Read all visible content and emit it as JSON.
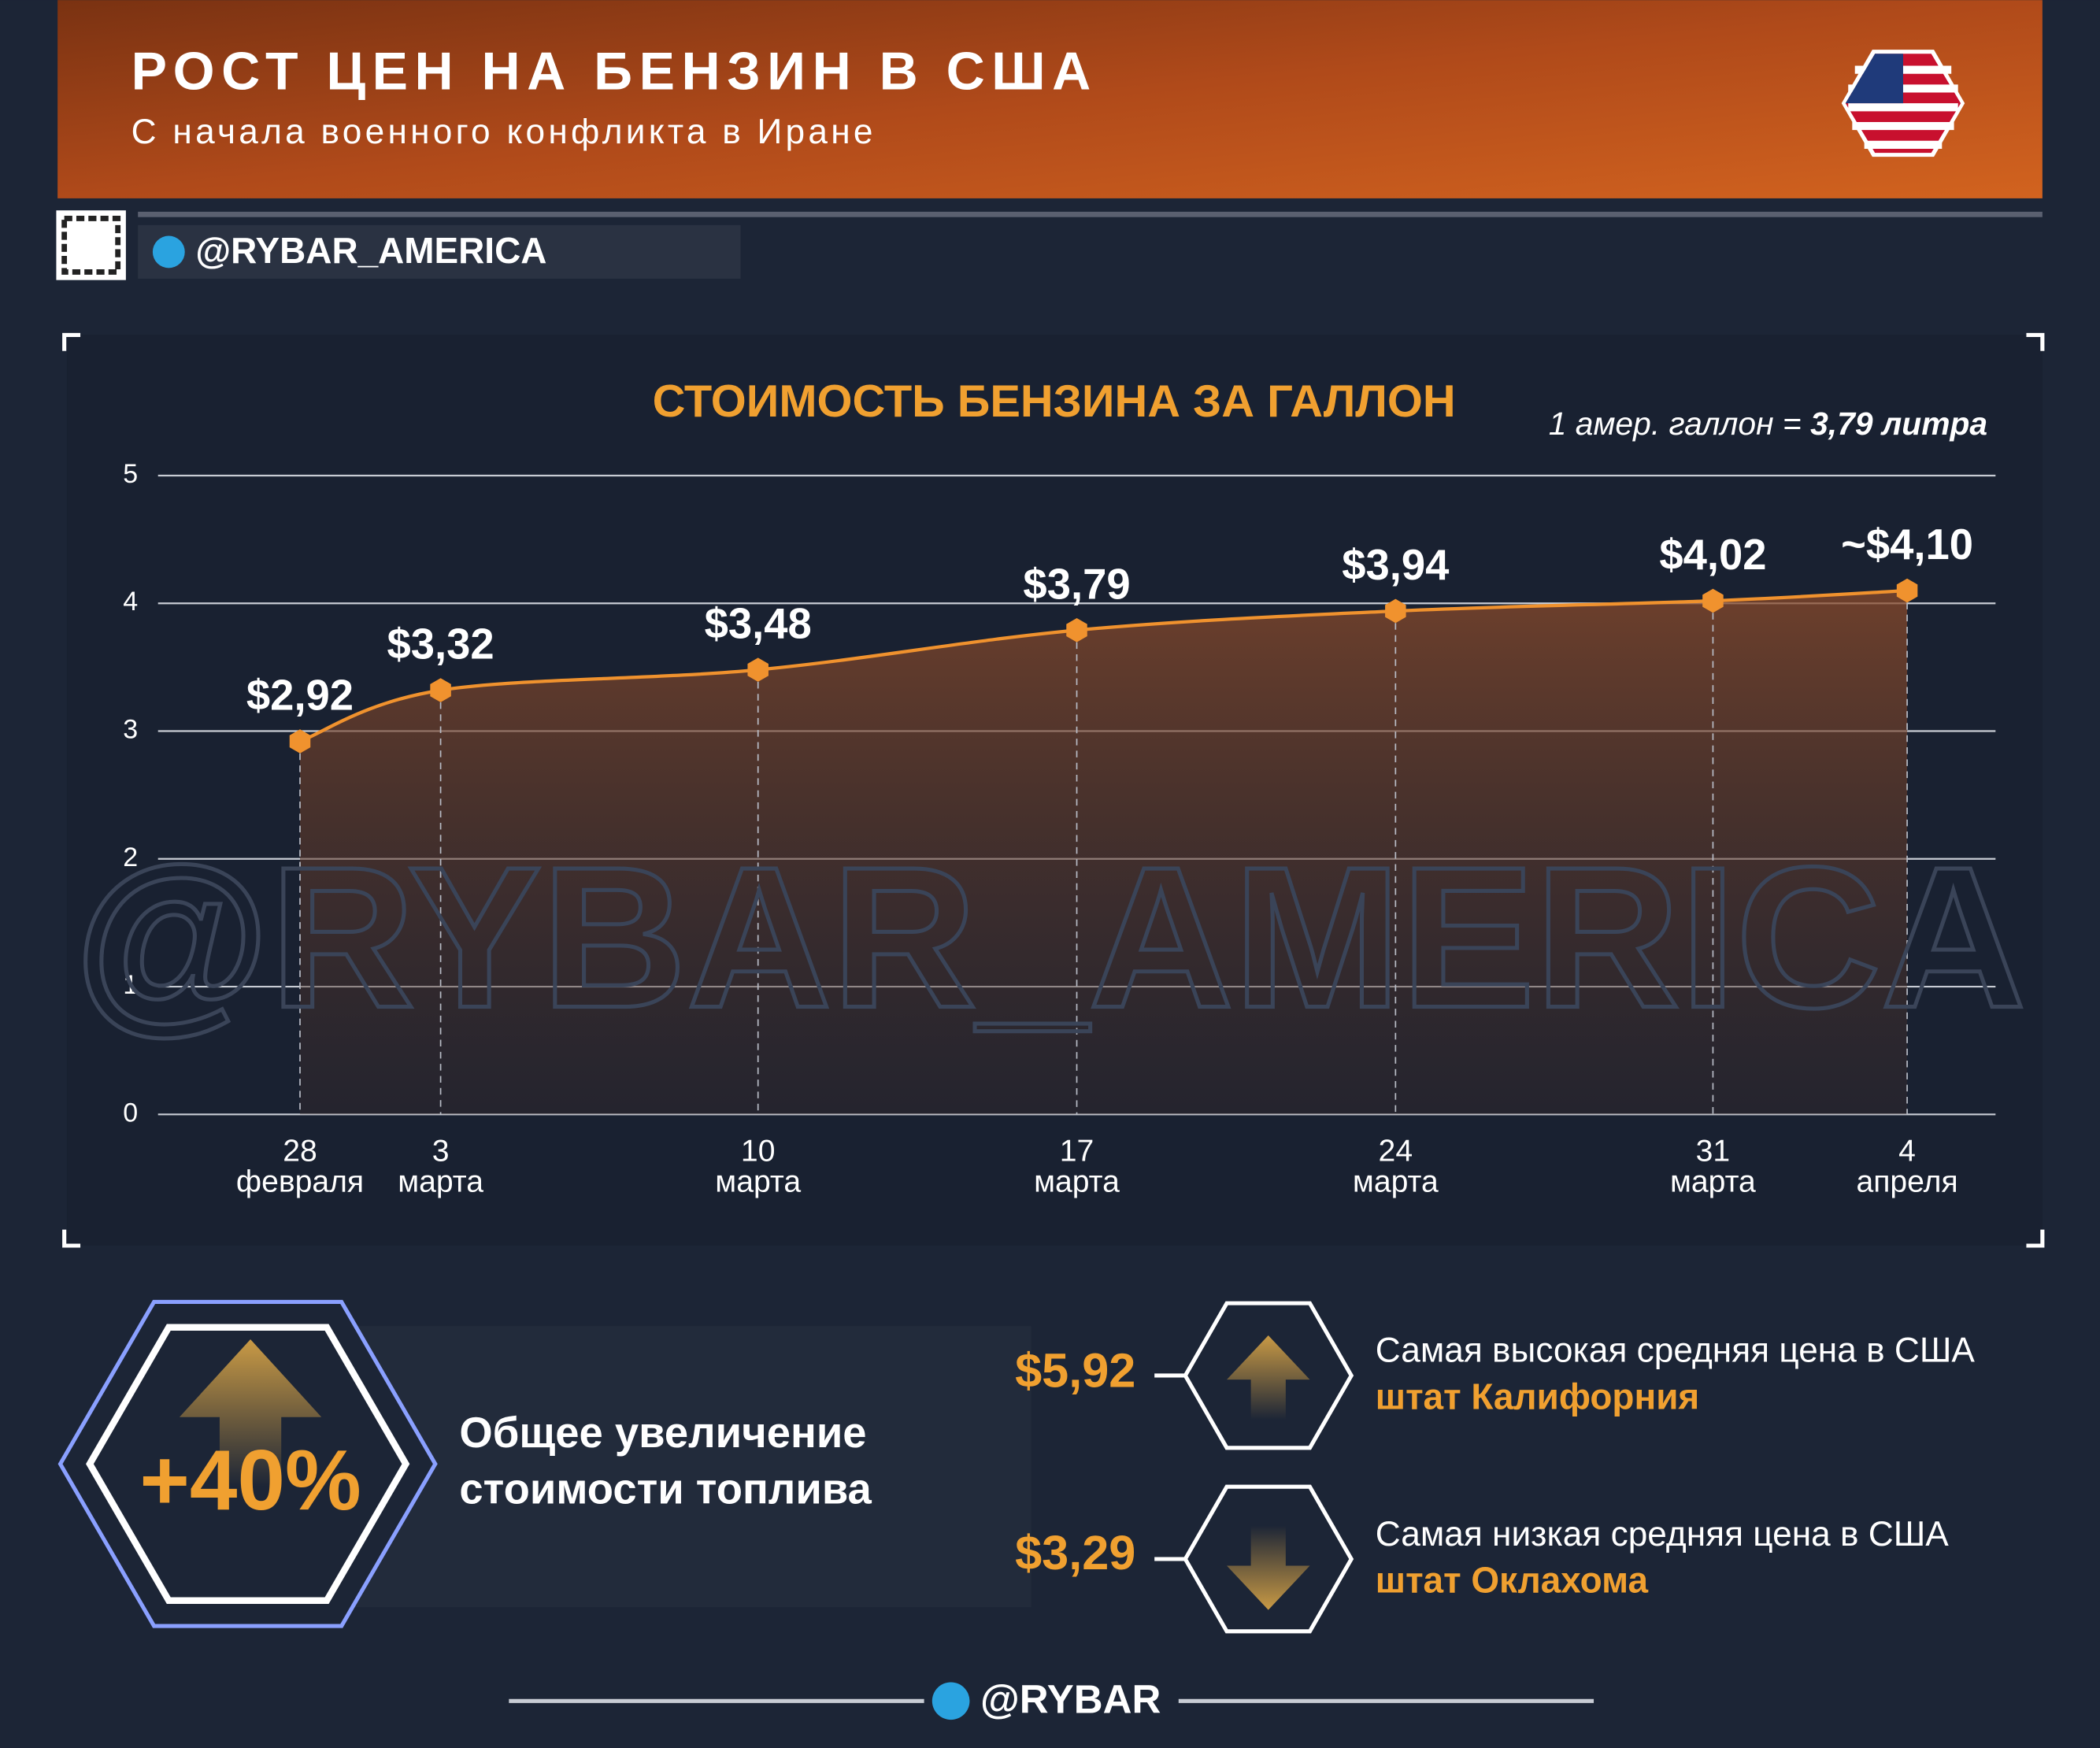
{
  "header": {
    "title": "РОСТ ЦЕН НА БЕНЗИН В США",
    "subtitle": "С начала военного конфликта в Иране",
    "handle": "@RYBAR_AMERICA"
  },
  "watermark": "@RYBAR_AMERICA",
  "chart_data": {
    "type": "line",
    "title": "СТОИМОСТЬ БЕНЗИНА ЗА ГАЛЛОН",
    "note": "1 амер. галлон = ",
    "note_bold": "3,79 литра",
    "categories": [
      "28 февраля",
      "3 марта",
      "10 марта",
      "17 марта",
      "24 марта",
      "31 марта",
      "4 апреля"
    ],
    "values": [
      2.92,
      3.32,
      3.48,
      3.79,
      3.94,
      4.02,
      4.1
    ],
    "value_labels": [
      "$2,92",
      "$3,32",
      "$3,48",
      "$3,79",
      "$3,94",
      "$4,02",
      "~$4,10"
    ],
    "color": "#f0922e",
    "ylim": [
      0,
      5
    ],
    "yticks": [
      0,
      1,
      2,
      3,
      4,
      5
    ],
    "grid": true
  },
  "stats": {
    "total": {
      "value": "+40%",
      "label": [
        "Общее увеличение",
        "стоимости топлива"
      ]
    },
    "high": {
      "price": "$5,92",
      "label": "Самая высокая средняя цена в США",
      "state": "штат Калифорния"
    },
    "low": {
      "price": "$3,29",
      "label": "Самая низкая средняя цена в США",
      "state": "штат Оклахома"
    }
  },
  "footer": "@RYBAR"
}
